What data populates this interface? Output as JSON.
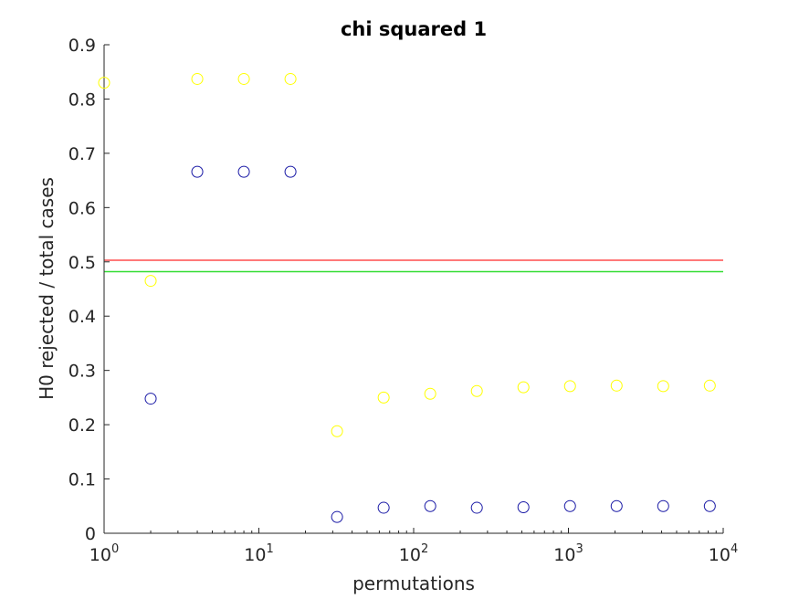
{
  "chart_data": {
    "type": "scatter",
    "title": "chi squared 1",
    "xlabel": "permutations",
    "ylabel": "H0 rejected / total cases",
    "xscale": "log",
    "xlim": [
      1,
      10000
    ],
    "ylim": [
      0,
      0.9
    ],
    "grid": false,
    "xticks": [
      {
        "value": 1,
        "base": "10",
        "exp": "0"
      },
      {
        "value": 10,
        "base": "10",
        "exp": "1"
      },
      {
        "value": 100,
        "base": "10",
        "exp": "2"
      },
      {
        "value": 1000,
        "base": "10",
        "exp": "3"
      },
      {
        "value": 10000,
        "base": "10",
        "exp": "4"
      }
    ],
    "yticks": [
      "0",
      "0.1",
      "0.2",
      "0.3",
      "0.4",
      "0.5",
      "0.6",
      "0.7",
      "0.8",
      "0.9"
    ],
    "x": [
      1,
      2,
      4,
      8,
      16,
      32,
      64,
      128,
      256,
      512,
      1024,
      2048,
      4096,
      8192
    ],
    "series": [
      {
        "color": "#ffff00",
        "marker": "circle",
        "values": [
          0.83,
          0.465,
          0.837,
          0.837,
          0.837,
          0.188,
          0.25,
          0.257,
          0.262,
          0.269,
          0.271,
          0.272,
          0.271,
          0.272
        ]
      },
      {
        "color": "#1a1aa6",
        "marker": "circle",
        "values": [
          null,
          0.248,
          0.666,
          0.666,
          0.666,
          0.03,
          0.047,
          0.05,
          0.047,
          0.048,
          0.05,
          0.05,
          0.05,
          0.05
        ]
      }
    ],
    "reference_lines": [
      {
        "y": 0.503,
        "color": "#ff4d4d"
      },
      {
        "y": 0.482,
        "color": "#33dd33"
      }
    ]
  }
}
